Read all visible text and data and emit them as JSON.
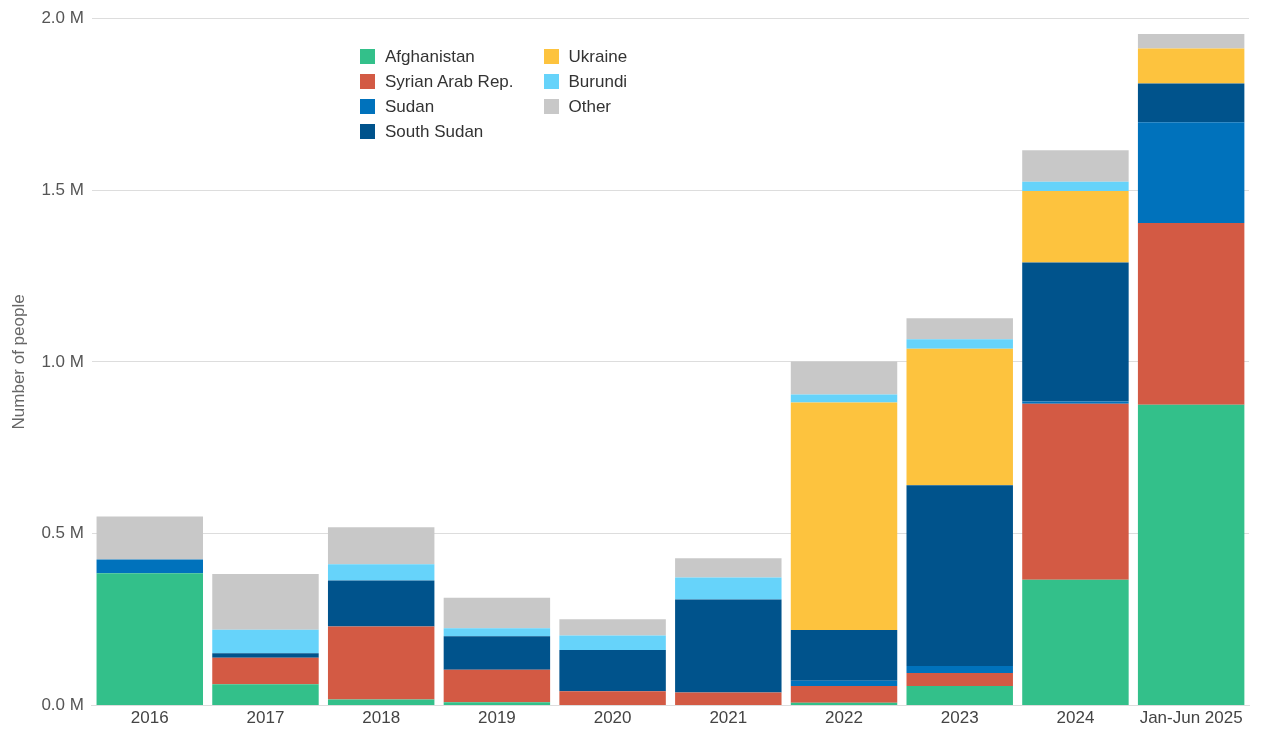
{
  "chart_data": {
    "type": "bar",
    "stacked": true,
    "ylabel": "Number of people",
    "categories": [
      "2016",
      "2017",
      "2018",
      "2019",
      "2020",
      "2021",
      "2022",
      "2023",
      "2024",
      "Jan-Jun 2025"
    ],
    "series": [
      {
        "name": "Afghanistan",
        "color": "#33c08a",
        "values": [
          0.385,
          0.062,
          0.018,
          0.01,
          0,
          0,
          0.008,
          0.057,
          0.366,
          0.875
        ]
      },
      {
        "name": "Syrian Arab Rep.",
        "color": "#d35a44",
        "values": [
          0,
          0.077,
          0.212,
          0.094,
          0.042,
          0.038,
          0.049,
          0.038,
          0.512,
          0.529
        ]
      },
      {
        "name": "Sudan",
        "color": "#0072bc",
        "values": [
          0.04,
          0,
          0,
          0,
          0,
          0,
          0.015,
          0.02,
          0.007,
          0.293
        ]
      },
      {
        "name": "South Sudan",
        "color": "#00538c",
        "values": [
          0,
          0.013,
          0.134,
          0.098,
          0.12,
          0.271,
          0.148,
          0.526,
          0.404,
          0.113
        ]
      },
      {
        "name": "Ukraine",
        "color": "#fdc33e",
        "values": [
          0,
          0,
          0,
          0,
          0,
          0,
          0.662,
          0.397,
          0.208,
          0.102
        ]
      },
      {
        "name": "Burundi",
        "color": "#66d3fa",
        "values": [
          0,
          0.069,
          0.047,
          0.023,
          0.042,
          0.064,
          0.023,
          0.028,
          0.027,
          0
        ]
      },
      {
        "name": "Other",
        "color": "#c8c8c8",
        "values": [
          0.125,
          0.162,
          0.108,
          0.089,
          0.047,
          0.056,
          0.096,
          0.061,
          0.092,
          0.042
        ]
      }
    ],
    "ylim": [
      0,
      2
    ],
    "yticks": [
      {
        "value": 0,
        "label": "0.0 M"
      },
      {
        "value": 0.5,
        "label": "0.5 M"
      },
      {
        "value": 1,
        "label": "1.0 M"
      },
      {
        "value": 1.5,
        "label": "1.5 M"
      },
      {
        "value": 2,
        "label": "2.0 M"
      }
    ],
    "grid": "y",
    "legend": "top"
  }
}
